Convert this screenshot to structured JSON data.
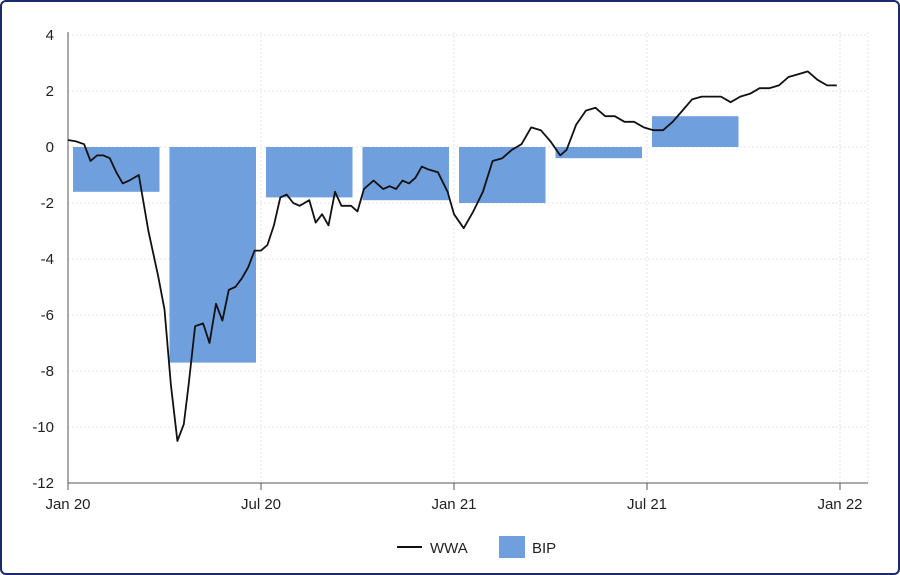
{
  "chart_data": {
    "type": "bar+line",
    "title": "",
    "xlabel": "",
    "ylabel": "",
    "ylim": [
      -12,
      4
    ],
    "yticks": [
      4,
      2,
      0,
      -2,
      -4,
      -6,
      -8,
      -10,
      -12
    ],
    "xlim": [
      0,
      24
    ],
    "xticks": [
      {
        "label": "Jan 20",
        "month": 0
      },
      {
        "label": "Jul 20",
        "month": 6
      },
      {
        "label": "Jan 21",
        "month": 12
      },
      {
        "label": "Jul 21",
        "month": 18
      },
      {
        "label": "Jan 22",
        "month": 24
      }
    ],
    "bar_series": {
      "name": "BIP",
      "color": "#6f9fdc",
      "bars": [
        {
          "start": 0,
          "end": 3,
          "value": -1.6
        },
        {
          "start": 3,
          "end": 6,
          "value": -7.7
        },
        {
          "start": 6,
          "end": 9,
          "value": -1.8
        },
        {
          "start": 9,
          "end": 12,
          "value": -1.9
        },
        {
          "start": 12,
          "end": 15,
          "value": -2.0
        },
        {
          "start": 15,
          "end": 18,
          "value": -0.4
        },
        {
          "start": 18,
          "end": 21,
          "value": 1.1
        }
      ]
    },
    "line_series": {
      "name": "WWA",
      "color": "#111111",
      "x": [
        0,
        0.25,
        0.5,
        0.7,
        0.9,
        1.1,
        1.3,
        1.5,
        1.7,
        1.9,
        2.2,
        2.5,
        2.8,
        3.0,
        3.2,
        3.4,
        3.6,
        3.75,
        3.95,
        4.2,
        4.4,
        4.6,
        4.8,
        5.0,
        5.2,
        5.4,
        5.6,
        5.8,
        6.0,
        6.2,
        6.4,
        6.6,
        6.8,
        7.0,
        7.2,
        7.5,
        7.7,
        7.9,
        8.1,
        8.3,
        8.5,
        8.8,
        9.0,
        9.2,
        9.5,
        9.8,
        10.0,
        10.2,
        10.4,
        10.6,
        10.8,
        11.0,
        11.2,
        11.5,
        11.8,
        12.0,
        12.3,
        12.6,
        12.9,
        13.2,
        13.5,
        13.8,
        14.1,
        14.4,
        14.7,
        15.0,
        15.3,
        15.5,
        15.8,
        16.1,
        16.4,
        16.7,
        17.0,
        17.3,
        17.6,
        17.9,
        18.2,
        18.5,
        18.8,
        19.1,
        19.4,
        19.7,
        20.0,
        20.3,
        20.6,
        20.9,
        21.2,
        21.5,
        21.8,
        22.1,
        22.4,
        22.7,
        23.0,
        23.3,
        23.6,
        23.9
      ],
      "y": [
        0.25,
        0.2,
        0.1,
        -0.5,
        -0.3,
        -0.3,
        -0.4,
        -0.9,
        -1.3,
        -1.2,
        -1.0,
        -3.0,
        -4.6,
        -5.8,
        -8.5,
        -10.5,
        -9.9,
        -8.5,
        -6.4,
        -6.3,
        -7.0,
        -5.6,
        -6.2,
        -5.1,
        -5.0,
        -4.7,
        -4.3,
        -3.7,
        -3.7,
        -3.5,
        -2.8,
        -1.8,
        -1.7,
        -2.0,
        -2.1,
        -1.9,
        -2.7,
        -2.4,
        -2.8,
        -1.6,
        -2.1,
        -2.1,
        -2.3,
        -1.5,
        -1.2,
        -1.5,
        -1.4,
        -1.5,
        -1.2,
        -1.3,
        -1.1,
        -0.7,
        -0.8,
        -0.9,
        -1.6,
        -2.4,
        -2.9,
        -2.3,
        -1.6,
        -0.5,
        -0.4,
        -0.1,
        0.1,
        0.7,
        0.6,
        0.2,
        -0.3,
        -0.1,
        0.8,
        1.3,
        1.4,
        1.1,
        1.1,
        0.9,
        0.9,
        0.7,
        0.6,
        0.6,
        0.9,
        1.3,
        1.7,
        1.8,
        1.8,
        1.8,
        1.6,
        1.8,
        1.9,
        2.1,
        2.1,
        2.2,
        2.5,
        2.6,
        2.7,
        2.4,
        2.2,
        2.2
      ]
    },
    "legend": [
      "WWA",
      "BIP"
    ],
    "legend_position": "bottom-center",
    "grid": true
  }
}
